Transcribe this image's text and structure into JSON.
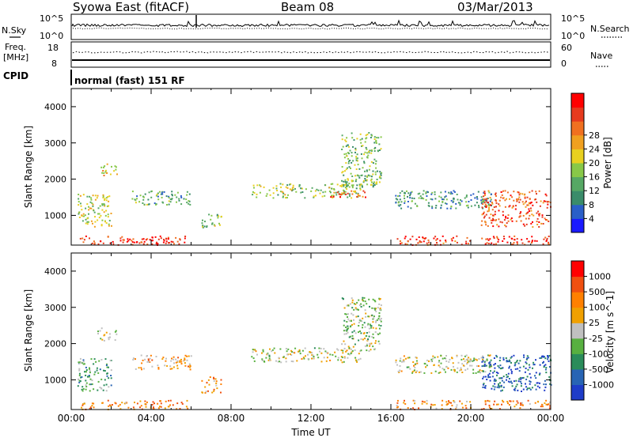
{
  "header": {
    "station": "Syowa East (fitACF)",
    "beam": "Beam 08",
    "date": "03/Mar/2013"
  },
  "noise_panel": {
    "left_label": "N.Sky",
    "right_label": "N.Search",
    "left_ticks": [
      "10^5",
      "10^0"
    ],
    "right_ticks": [
      "10^5",
      "10^0"
    ]
  },
  "freq_panel": {
    "left_label_1": "Freq.",
    "left_label_2": "[MHz]",
    "right_label": "Nave",
    "left_ticks": [
      "18",
      "8"
    ],
    "right_ticks": [
      "60",
      "0"
    ]
  },
  "cpid_panel": {
    "label": "CPID",
    "mode_text": "normal (fast) 151 RF"
  },
  "x_axis": {
    "label": "Time UT",
    "ticks": [
      "00:00",
      "04:00",
      "08:00",
      "12:00",
      "16:00",
      "20:00",
      "00:00"
    ]
  },
  "chart_data": [
    {
      "type": "heatmap",
      "name": "Power",
      "ylabel": "Slant Range [km]",
      "xlabel": "Time UT",
      "xlim_hours": [
        0,
        24
      ],
      "ylim_km": [
        180,
        4500
      ],
      "yticks": [
        "1000",
        "2000",
        "3000",
        "4000"
      ],
      "colorbar": {
        "label": "Power [dB]",
        "ticks": [
          "4",
          "8",
          "12",
          "16",
          "20",
          "24",
          "28"
        ],
        "colors": [
          "#1a1aff",
          "#2a5fc8",
          "#3a8c6a",
          "#56a864",
          "#88c848",
          "#e8d020",
          "#f0a020",
          "#f07020",
          "#e63a1e",
          "#ff0000"
        ]
      },
      "echo_regions": [
        {
          "t0": 0.4,
          "t1": 5.8,
          "r0": 200,
          "r1": 450,
          "level": 0.9
        },
        {
          "t0": 0.3,
          "t1": 2.0,
          "r0": 700,
          "r1": 1600,
          "level": 0.5
        },
        {
          "t0": 1.3,
          "t1": 2.3,
          "r0": 2100,
          "r1": 2450,
          "level": 0.6
        },
        {
          "t0": 3.0,
          "t1": 6.0,
          "r0": 1300,
          "r1": 1700,
          "level": 0.35
        },
        {
          "t0": 6.5,
          "t1": 7.5,
          "r0": 650,
          "r1": 1100,
          "level": 0.45
        },
        {
          "t0": 9.0,
          "t1": 14.5,
          "r0": 1500,
          "r1": 1900,
          "level": 0.45
        },
        {
          "t0": 12.8,
          "t1": 14.7,
          "r0": 1500,
          "r1": 1700,
          "level": 0.85
        },
        {
          "t0": 13.5,
          "t1": 15.5,
          "r0": 1800,
          "r1": 3300,
          "level": 0.4
        },
        {
          "t0": 16.2,
          "t1": 21.0,
          "r0": 1200,
          "r1": 1700,
          "level": 0.3
        },
        {
          "t0": 16.2,
          "t1": 20.0,
          "r0": 200,
          "r1": 450,
          "level": 0.85
        },
        {
          "t0": 20.5,
          "t1": 24.0,
          "r0": 700,
          "r1": 1700,
          "level": 0.8
        },
        {
          "t0": 20.5,
          "t1": 24.0,
          "r0": 200,
          "r1": 450,
          "level": 0.9
        }
      ]
    },
    {
      "type": "heatmap",
      "name": "Velocity",
      "ylabel": "Slant Range [km]",
      "xlabel": "Time UT",
      "xlim_hours": [
        0,
        24
      ],
      "ylim_km": [
        180,
        4500
      ],
      "yticks": [
        "1000",
        "2000",
        "3000",
        "4000"
      ],
      "colorbar": {
        "label": "Velocity [m s^-1]",
        "ticks": [
          "1000",
          "500",
          "100",
          "25",
          "-25",
          "-100",
          "-500",
          "-1000"
        ],
        "colors": [
          "#1e3cc8",
          "#2864b4",
          "#2a8c5a",
          "#58b040",
          "#c0c0c0",
          "#f0a000",
          "#ff8000",
          "#f05010",
          "#ff0000"
        ]
      },
      "echo_regions": [
        {
          "t0": 0.4,
          "t1": 5.8,
          "r0": 200,
          "r1": 450,
          "level": 0.72
        },
        {
          "t0": 0.3,
          "t1": 2.0,
          "r0": 700,
          "r1": 1600,
          "level": 0.35
        },
        {
          "t0": 1.3,
          "t1": 2.3,
          "r0": 2100,
          "r1": 2450,
          "level": 0.5
        },
        {
          "t0": 3.0,
          "t1": 6.0,
          "r0": 1300,
          "r1": 1700,
          "level": 0.62
        },
        {
          "t0": 6.5,
          "t1": 7.5,
          "r0": 650,
          "r1": 1100,
          "level": 0.7
        },
        {
          "t0": 9.0,
          "t1": 14.5,
          "r0": 1500,
          "r1": 1900,
          "level": 0.5
        },
        {
          "t0": 13.5,
          "t1": 15.5,
          "r0": 1800,
          "r1": 3300,
          "level": 0.45
        },
        {
          "t0": 16.2,
          "t1": 21.0,
          "r0": 1200,
          "r1": 1700,
          "level": 0.5
        },
        {
          "t0": 16.2,
          "t1": 20.0,
          "r0": 200,
          "r1": 450,
          "level": 0.68
        },
        {
          "t0": 20.5,
          "t1": 24.0,
          "r0": 700,
          "r1": 1700,
          "level": 0.15
        },
        {
          "t0": 20.5,
          "t1": 24.0,
          "r0": 200,
          "r1": 450,
          "level": 0.68
        }
      ]
    }
  ]
}
